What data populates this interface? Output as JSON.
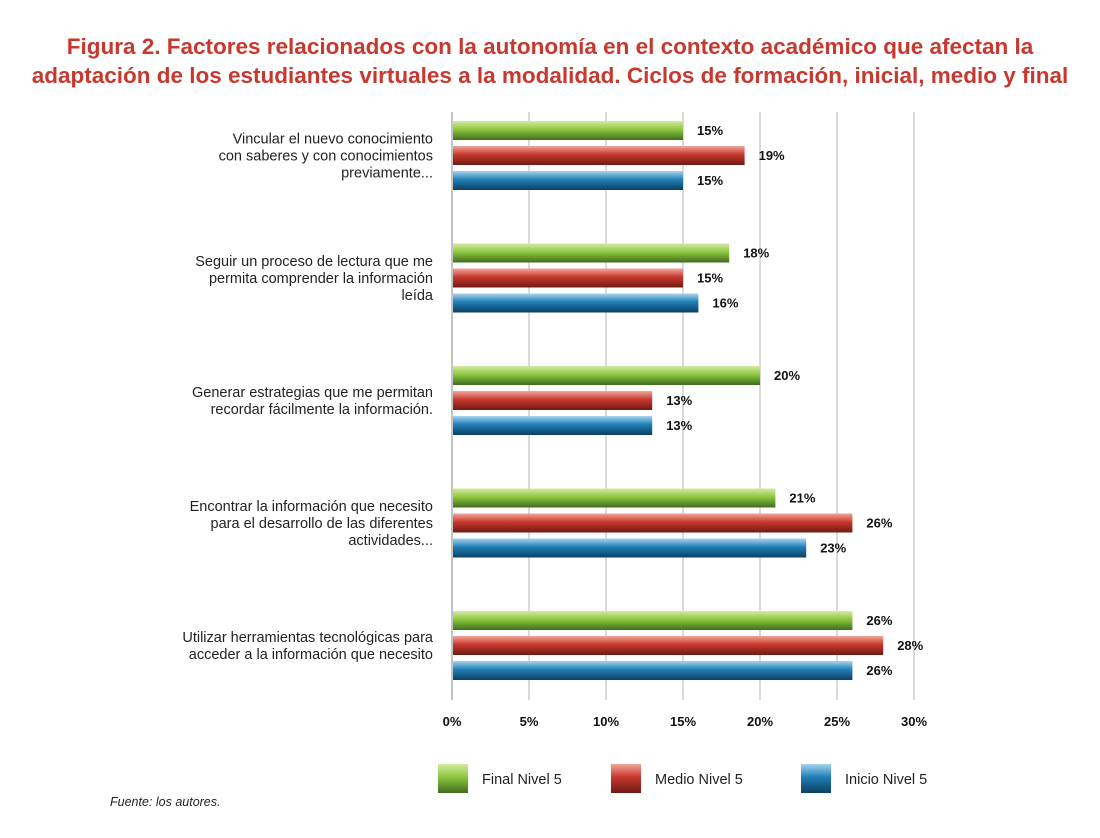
{
  "title_lines": [
    "Figura 2. Factores relacionados con la autonomía en el contexto académico que afectan la",
    "adaptación de los estudiantes virtuales a la modalidad. Ciclos de formación, inicial, medio y final"
  ],
  "source": "Fuente: los autores.",
  "chart_data": {
    "type": "bar",
    "orientation": "horizontal",
    "categories": [
      [
        "Vincular el nuevo conocimiento",
        "con saberes y con conocimientos",
        "previamente..."
      ],
      [
        "Seguir un proceso de lectura que me",
        "permita comprender la información",
        "leída"
      ],
      [
        "Generar estrategias que me permitan",
        "recordar fácilmente la información."
      ],
      [
        "Encontrar la información que necesito",
        "para el desarrollo de las diferentes",
        "actividades..."
      ],
      [
        "Utilizar herramientas tecnológicas para",
        "acceder a la información que necesito"
      ]
    ],
    "series": [
      {
        "name": "Final Nivel 5",
        "color": "#8dc63f",
        "values": [
          15,
          18,
          20,
          21,
          26
        ],
        "labels": [
          "15%",
          "18%",
          "20%",
          "21%",
          "26%"
        ]
      },
      {
        "name": "Medio Nivel 5",
        "color": "#c8382e",
        "values": [
          19,
          15,
          13,
          26,
          28
        ],
        "labels": [
          "19%",
          "15%",
          "13%",
          "26%",
          "28%"
        ]
      },
      {
        "name": "Inicio Nivel 5",
        "color": "#1f7fb6",
        "values": [
          15,
          16,
          13,
          23,
          26
        ],
        "labels": [
          "15%",
          "16%",
          "13%",
          "23%",
          "26%"
        ]
      }
    ],
    "xlim": [
      0,
      30
    ],
    "xticks": [
      0,
      5,
      10,
      15,
      20,
      25,
      30
    ],
    "xtick_labels": [
      "0%",
      "5%",
      "10%",
      "15%",
      "20%",
      "25%",
      "30%"
    ],
    "grid": "vertical",
    "legend_position": "bottom"
  }
}
